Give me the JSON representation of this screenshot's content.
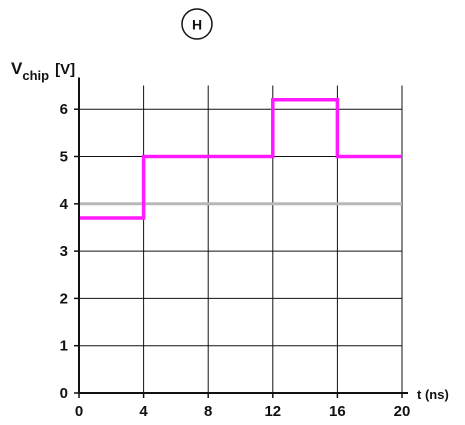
{
  "chart_data": {
    "type": "line",
    "panel_label": "H",
    "ylabel": {
      "symbol": "V",
      "subscript": "chip",
      "unit": "[V]"
    },
    "xlabel": "t (ns)",
    "xlim": [
      0,
      20
    ],
    "ylim": [
      0,
      6.5
    ],
    "x_ticks": [
      0,
      4,
      8,
      12,
      16,
      20
    ],
    "y_ticks": [
      0,
      1,
      2,
      3,
      4,
      5,
      6
    ],
    "grid": true,
    "reference_line": {
      "y": 4,
      "color": "#b8b8b8"
    },
    "series": [
      {
        "color": "#ff1aff",
        "step": true,
        "x": [
          0,
          4,
          4,
          12,
          12,
          16,
          16,
          20
        ],
        "y": [
          3.7,
          3.7,
          5,
          5,
          6.2,
          6.2,
          5,
          5
        ]
      }
    ]
  }
}
